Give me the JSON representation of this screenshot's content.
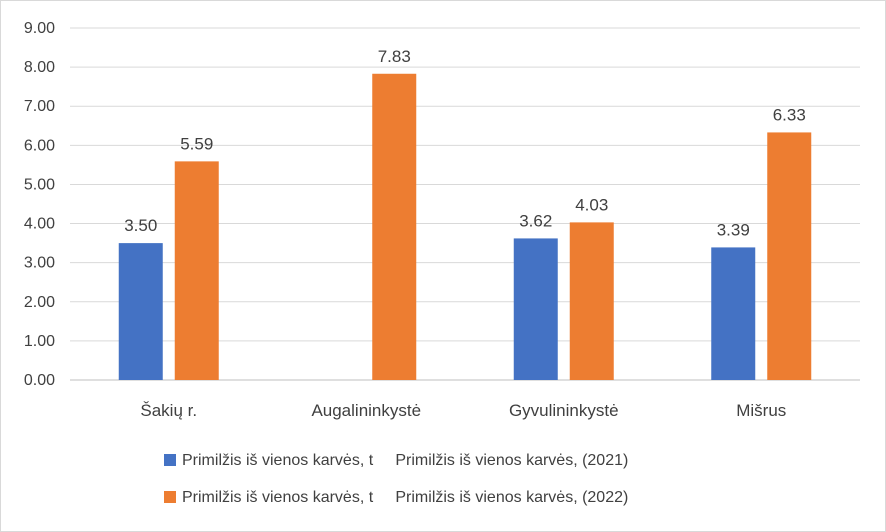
{
  "chart_data": {
    "type": "bar",
    "categories": [
      "Šakių r.",
      "Augalininkystė",
      "Gyvulininkystė",
      "Mišrus"
    ],
    "series": [
      {
        "name": "Primilžis iš vienos karvės, t     Primilžis iš vienos karvės, (2021)",
        "color": "#4472C4",
        "values": [
          3.5,
          null,
          3.62,
          3.39
        ],
        "labels": [
          "3.50",
          "",
          "3.62",
          "3.39"
        ]
      },
      {
        "name": "Primilžis iš vienos karvės, t     Primilžis iš vienos karvės, (2022)",
        "color": "#ED7D31",
        "values": [
          5.59,
          7.83,
          4.03,
          6.33
        ],
        "labels": [
          "5.59",
          "7.83",
          "4.03",
          "6.33"
        ]
      }
    ],
    "yticks": [
      "0.00",
      "1.00",
      "2.00",
      "3.00",
      "4.00",
      "5.00",
      "6.00",
      "7.00",
      "8.00",
      "9.00"
    ],
    "ylim": [
      0,
      9
    ],
    "grid": true,
    "legend_position": "bottom",
    "gridline_color": "#d9d9d9",
    "axis_color": "#bfbfbf"
  }
}
